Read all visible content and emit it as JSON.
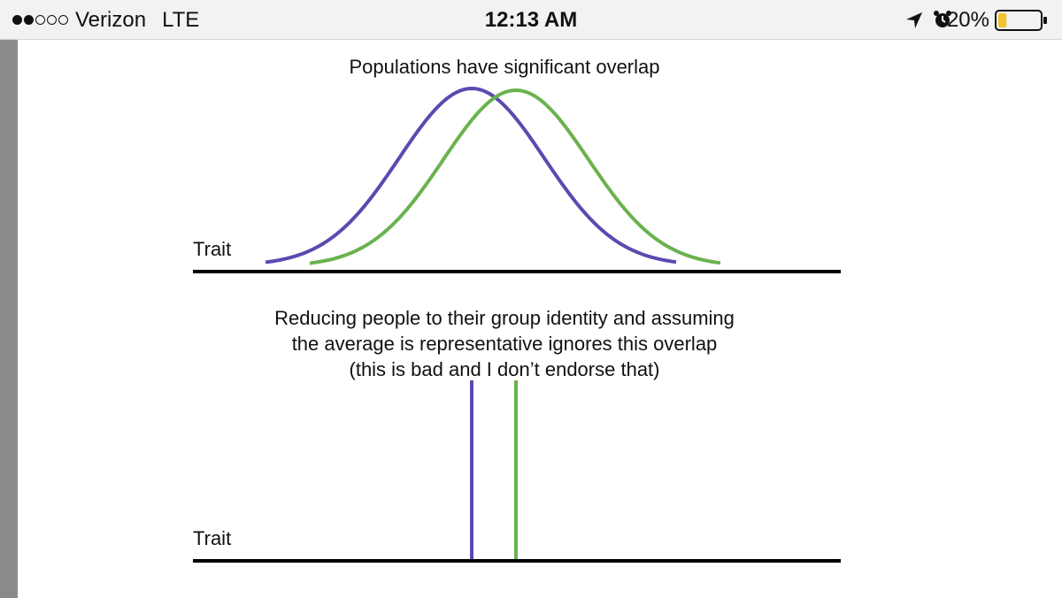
{
  "status_bar": {
    "signal": "●●○○○",
    "carrier": "Verizon",
    "network": "LTE",
    "time": "12:13 AM",
    "battery_percent": "20%",
    "battery_level": 0.2,
    "icons": [
      "location-arrow-icon",
      "alarm-clock-icon",
      "battery-icon"
    ]
  },
  "figure": {
    "title_top": "Populations have significant overlap",
    "axis_label_top": "Trait",
    "caption_lines": [
      "Reducing people to their group identity and assuming",
      "the average is representative ignores this overlap",
      "(this is bad and I don’t endorse that)"
    ],
    "axis_label_bottom": "Trait",
    "colors": {
      "purple": "#5b4ab0",
      "green": "#6ab24f",
      "axis": "#000000"
    }
  }
}
